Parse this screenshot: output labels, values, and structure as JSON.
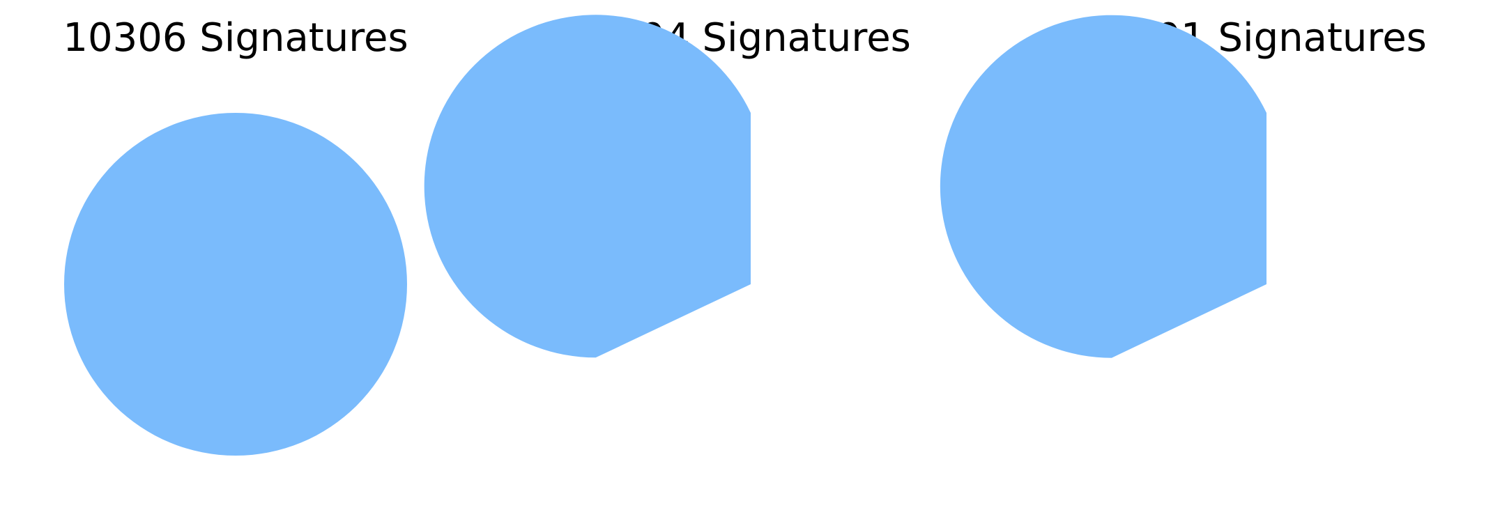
{
  "chart_data": [
    {
      "type": "pie",
      "title": "10306 Signatures",
      "values": [
        10306
      ],
      "total": 10306,
      "color": "#7abbfc"
    },
    {
      "type": "pie",
      "title": "7004 Signatures",
      "values": [
        7004
      ],
      "total": 10306,
      "color": "#7abbfc"
    },
    {
      "type": "pie",
      "title": "7001 Signatures",
      "values": [
        7001
      ],
      "total": 10306,
      "color": "#7abbfc"
    }
  ]
}
